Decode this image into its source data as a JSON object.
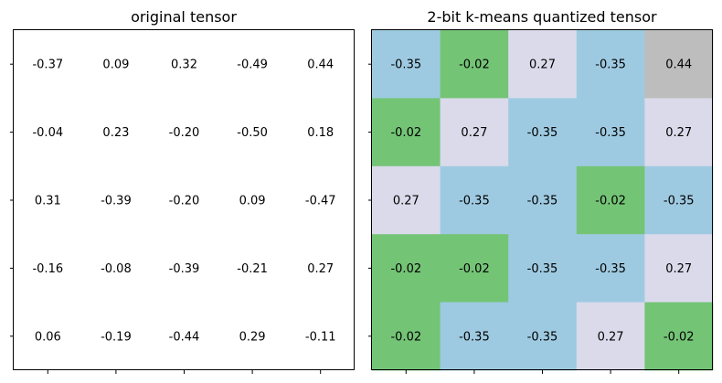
{
  "chart_data": [
    {
      "type": "table",
      "title": "original tensor",
      "rows": [
        [
          "-0.37",
          "0.09",
          "0.32",
          "-0.49",
          "0.44"
        ],
        [
          "-0.04",
          "0.23",
          "-0.20",
          "-0.50",
          "0.18"
        ],
        [
          "0.31",
          "-0.39",
          "-0.20",
          "0.09",
          "-0.47"
        ],
        [
          "-0.16",
          "-0.08",
          "-0.39",
          "-0.21",
          "0.27"
        ],
        [
          "0.06",
          "-0.19",
          "-0.44",
          "0.29",
          "-0.11"
        ]
      ],
      "cell_colors": null
    },
    {
      "type": "heatmap",
      "title": "2-bit k-means quantized tensor",
      "rows": [
        [
          "-0.35",
          "-0.02",
          "0.27",
          "-0.35",
          "0.44"
        ],
        [
          "-0.02",
          "0.27",
          "-0.35",
          "-0.35",
          "0.27"
        ],
        [
          "0.27",
          "-0.35",
          "-0.35",
          "-0.02",
          "-0.35"
        ],
        [
          "-0.02",
          "-0.02",
          "-0.35",
          "-0.35",
          "0.27"
        ],
        [
          "-0.02",
          "-0.35",
          "-0.35",
          "0.27",
          "-0.02"
        ]
      ],
      "value_colors": {
        "-0.35": "#9ecae1",
        "-0.02": "#74c476",
        "0.27": "#dadaeb",
        "0.44": "#bdbdbd"
      }
    }
  ]
}
